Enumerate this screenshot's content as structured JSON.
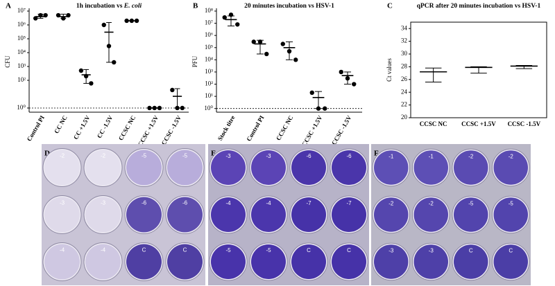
{
  "chart_data": [
    {
      "type": "scatter",
      "panel": "A",
      "title": "1h incubation vs",
      "title_organism": "E. coli",
      "ylabel": "CFU",
      "log_y": true,
      "color": "#000000",
      "categories": [
        "Control PI",
        "CC NC",
        "CC +1.5V",
        "CC -1.5V",
        "CCSC NC",
        "CCSC +1.5V",
        "CCSC -1.5V"
      ],
      "values": [
        [
          3000000,
          5000000,
          5000000
        ],
        [
          5000000,
          3000000,
          5000000
        ],
        [
          500,
          200,
          60
        ],
        [
          1000000,
          30000,
          2000
        ],
        [
          2000000,
          2000000,
          2000000
        ],
        [
          1,
          1,
          1
        ],
        [
          20,
          1,
          1
        ]
      ],
      "means": [
        4000000,
        4000000,
        250,
        300000,
        2000000,
        1,
        7
      ],
      "lows": [
        3000000,
        3000000,
        60,
        2000,
        2000000,
        1,
        1
      ],
      "highs": [
        6000000,
        6000000,
        600,
        1500000,
        2000000,
        1,
        25
      ],
      "reference_line": 1,
      "ylim": [
        0.5,
        10000000
      ],
      "yticks": [
        {
          "value": 1,
          "label": "10⁰"
        },
        {
          "value": 100,
          "label": "10²"
        },
        {
          "value": 1000,
          "label": "10³"
        },
        {
          "value": 10000,
          "label": "10⁴"
        },
        {
          "value": 100000,
          "label": "10⁵"
        },
        {
          "value": 1000000,
          "label": "10⁶"
        },
        {
          "value": 10000000,
          "label": "10⁷"
        }
      ]
    },
    {
      "type": "scatter",
      "panel": "B",
      "title": "20 minutes incubation vs HSV-1",
      "ylabel": "PFU",
      "log_y": true,
      "color": "#000000",
      "categories": [
        "Stock titre",
        "Control PI",
        "CCSC NC",
        "CCSC +1.5V",
        "CCSC -1.5V"
      ],
      "values": [
        [
          30000000,
          50000000,
          8000000
        ],
        [
          300000,
          300000,
          30000
        ],
        [
          200000,
          50000,
          10000
        ],
        [
          20,
          1,
          1
        ],
        [
          1000,
          300,
          100
        ]
      ],
      "means": [
        20000000,
        200000,
        100000,
        8,
        500
      ],
      "lows": [
        6000000,
        30000,
        10000,
        1,
        100
      ],
      "highs": [
        40000000,
        400000,
        300000,
        25,
        1000
      ],
      "reference_line": 1,
      "ylim": [
        0.5,
        100000000
      ],
      "yticks": [
        {
          "value": 1,
          "label": "10⁰"
        },
        {
          "value": 10,
          "label": "10¹"
        },
        {
          "value": 100,
          "label": "10²"
        },
        {
          "value": 1000,
          "label": "10³"
        },
        {
          "value": 10000,
          "label": "10⁴"
        },
        {
          "value": 100000,
          "label": "10⁵"
        },
        {
          "value": 1000000,
          "label": "10⁶"
        },
        {
          "value": 10000000,
          "label": "10⁷"
        },
        {
          "value": 100000000,
          "label": "10⁸"
        }
      ]
    },
    {
      "type": "errorbar",
      "panel": "C",
      "title": "qPCR after 20 minutes incubation vs HSV-1",
      "ylabel": "Ct values",
      "log_y": false,
      "color": "#000000",
      "categories": [
        "CCSC NC",
        "CCSC +1.5V",
        "CCSC -1.5V"
      ],
      "means": [
        27.2,
        27.9,
        28.1
      ],
      "lows": [
        25.6,
        27.0,
        27.7
      ],
      "highs": [
        27.8,
        28.0,
        28.2
      ],
      "ylim": [
        20,
        35
      ],
      "yticks": [
        20,
        22,
        24,
        26,
        28,
        30,
        32,
        34
      ]
    }
  ],
  "plates": [
    {
      "label": "D",
      "wells": [
        [
          "-2",
          "-2",
          "-5",
          "-5"
        ],
        [
          "-3",
          "-3",
          "-6",
          "-6"
        ],
        [
          "-4",
          "-4",
          "C",
          "C"
        ]
      ]
    },
    {
      "label": "E",
      "wells": [
        [
          "-3",
          "-3",
          "-6",
          "-6"
        ],
        [
          "-4",
          "-4",
          "-7",
          "-7"
        ],
        [
          "-5",
          "-5",
          "C",
          "C"
        ]
      ]
    },
    {
      "label": "F",
      "wells": [
        [
          "-1",
          "-1",
          "-2",
          "-2"
        ],
        [
          "-2",
          "-2",
          "-5",
          "-5"
        ],
        [
          "-3",
          "-3",
          "C",
          "C"
        ]
      ]
    }
  ]
}
